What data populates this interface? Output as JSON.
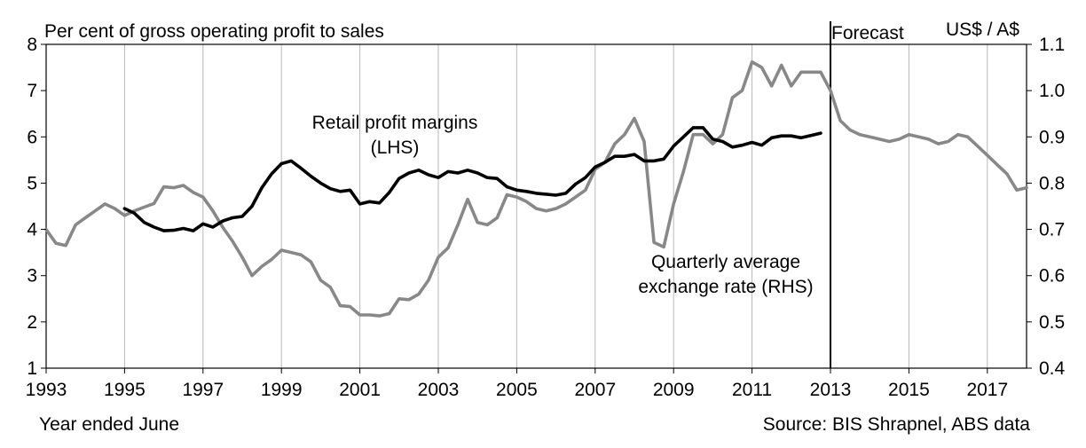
{
  "chart_data": {
    "type": "line",
    "left_axis_title": "Per cent of gross operating profit to sales",
    "right_axis_title": "US$ / A$",
    "xlabel": "Year ended June",
    "source": "Source: BIS Shrapnel, ABS data",
    "forecast_label": "Forecast",
    "forecast_start": 2013,
    "xlim": [
      1993,
      2018
    ],
    "ylim_left": [
      1,
      8
    ],
    "ylim_right": [
      0.4,
      1.1
    ],
    "x_ticks": [
      1993,
      1995,
      1997,
      1999,
      2001,
      2003,
      2005,
      2007,
      2009,
      2011,
      2013,
      2015,
      2017
    ],
    "y_ticks_left": [
      1,
      2,
      3,
      4,
      5,
      6,
      7,
      8
    ],
    "y_ticks_right": [
      "0.4",
      "0.5",
      "0.6",
      "0.7",
      "0.8",
      "0.9",
      "1.0",
      "1.1"
    ],
    "grid": "vertical",
    "series": [
      {
        "name": "Retail profit margins (LHS)",
        "label_lines": [
          "Retail profit margins",
          "(LHS)"
        ],
        "axis": "left",
        "color": "#000000",
        "x": [
          1995.0,
          1995.25,
          1995.5,
          1995.75,
          1996.0,
          1996.25,
          1996.5,
          1996.75,
          1997.0,
          1997.25,
          1997.5,
          1997.75,
          1998.0,
          1998.25,
          1998.5,
          1998.75,
          1999.0,
          1999.25,
          1999.5,
          1999.75,
          2000.0,
          2000.25,
          2000.5,
          2000.75,
          2001.0,
          2001.25,
          2001.5,
          2001.75,
          2002.0,
          2002.25,
          2002.5,
          2002.75,
          2003.0,
          2003.25,
          2003.5,
          2003.75,
          2004.0,
          2004.25,
          2004.5,
          2004.75,
          2005.0,
          2005.25,
          2005.5,
          2005.75,
          2006.0,
          2006.25,
          2006.5,
          2006.75,
          2007.0,
          2007.25,
          2007.5,
          2007.75,
          2008.0,
          2008.25,
          2008.5,
          2008.75,
          2009.0,
          2009.25,
          2009.5,
          2009.75,
          2010.0,
          2010.25,
          2010.5,
          2010.75,
          2011.0,
          2011.25,
          2011.5,
          2011.75,
          2012.0,
          2012.25,
          2012.5,
          2012.75
        ],
        "y": [
          4.45,
          4.35,
          4.15,
          4.05,
          3.97,
          3.98,
          4.02,
          3.97,
          4.12,
          4.05,
          4.18,
          4.25,
          4.28,
          4.5,
          4.9,
          5.2,
          5.42,
          5.48,
          5.32,
          5.15,
          5.0,
          4.88,
          4.82,
          4.85,
          4.55,
          4.6,
          4.57,
          4.8,
          5.1,
          5.22,
          5.28,
          5.18,
          5.12,
          5.25,
          5.22,
          5.28,
          5.22,
          5.12,
          5.1,
          4.92,
          4.85,
          4.82,
          4.78,
          4.76,
          4.74,
          4.78,
          4.98,
          5.12,
          5.35,
          5.45,
          5.58,
          5.58,
          5.62,
          5.48,
          5.48,
          5.52,
          5.8,
          6.0,
          6.2,
          6.2,
          5.95,
          5.9,
          5.78,
          5.82,
          5.88,
          5.82,
          5.98,
          6.02,
          6.02,
          5.98,
          6.03,
          6.08
        ]
      },
      {
        "name": "Quarterly average exchange rate (RHS)",
        "label_lines": [
          "Quarterly average",
          "exchange rate (RHS)"
        ],
        "axis": "right",
        "color": "#888888",
        "x": [
          1993.0,
          1993.25,
          1993.5,
          1993.75,
          1994.0,
          1994.25,
          1994.5,
          1994.75,
          1995.0,
          1995.25,
          1995.5,
          1995.75,
          1996.0,
          1996.25,
          1996.5,
          1996.75,
          1997.0,
          1997.25,
          1997.5,
          1997.75,
          1998.0,
          1998.25,
          1998.5,
          1998.75,
          1999.0,
          1999.25,
          1999.5,
          1999.75,
          2000.0,
          2000.25,
          2000.5,
          2000.75,
          2001.0,
          2001.25,
          2001.5,
          2001.75,
          2002.0,
          2002.25,
          2002.5,
          2002.75,
          2003.0,
          2003.25,
          2003.5,
          2003.75,
          2004.0,
          2004.25,
          2004.5,
          2004.75,
          2005.0,
          2005.25,
          2005.5,
          2005.75,
          2006.0,
          2006.25,
          2006.5,
          2006.75,
          2007.0,
          2007.25,
          2007.5,
          2007.75,
          2008.0,
          2008.25,
          2008.5,
          2008.75,
          2009.0,
          2009.25,
          2009.5,
          2009.75,
          2010.0,
          2010.25,
          2010.5,
          2010.75,
          2011.0,
          2011.25,
          2011.5,
          2011.75,
          2012.0,
          2012.25,
          2012.5,
          2012.75,
          2013.0,
          2013.25,
          2013.5,
          2013.75,
          2014.0,
          2014.25,
          2014.5,
          2014.75,
          2015.0,
          2015.25,
          2015.5,
          2015.75,
          2016.0,
          2016.25,
          2016.5,
          2016.75,
          2017.0,
          2017.25,
          2017.5,
          2017.75,
          2018.0
        ],
        "y": [
          0.7,
          0.67,
          0.665,
          0.71,
          0.725,
          0.74,
          0.755,
          0.745,
          0.73,
          0.74,
          0.748,
          0.756,
          0.792,
          0.79,
          0.795,
          0.78,
          0.77,
          0.74,
          0.705,
          0.675,
          0.64,
          0.6,
          0.62,
          0.635,
          0.655,
          0.65,
          0.645,
          0.63,
          0.59,
          0.575,
          0.535,
          0.533,
          0.515,
          0.515,
          0.513,
          0.518,
          0.55,
          0.548,
          0.56,
          0.59,
          0.64,
          0.66,
          0.71,
          0.765,
          0.715,
          0.71,
          0.725,
          0.775,
          0.77,
          0.76,
          0.745,
          0.74,
          0.745,
          0.755,
          0.77,
          0.785,
          0.83,
          0.845,
          0.885,
          0.905,
          0.94,
          0.89,
          0.672,
          0.662,
          0.755,
          0.825,
          0.905,
          0.905,
          0.885,
          0.905,
          0.985,
          1.0,
          1.062,
          1.05,
          1.01,
          1.055,
          1.01,
          1.04,
          1.04,
          1.04,
          1.0,
          0.935,
          0.915,
          0.905,
          0.9,
          0.895,
          0.89,
          0.895,
          0.905,
          0.9,
          0.895,
          0.885,
          0.89,
          0.905,
          0.9,
          0.88,
          0.86,
          0.84,
          0.82,
          0.785,
          0.79
        ]
      }
    ]
  }
}
